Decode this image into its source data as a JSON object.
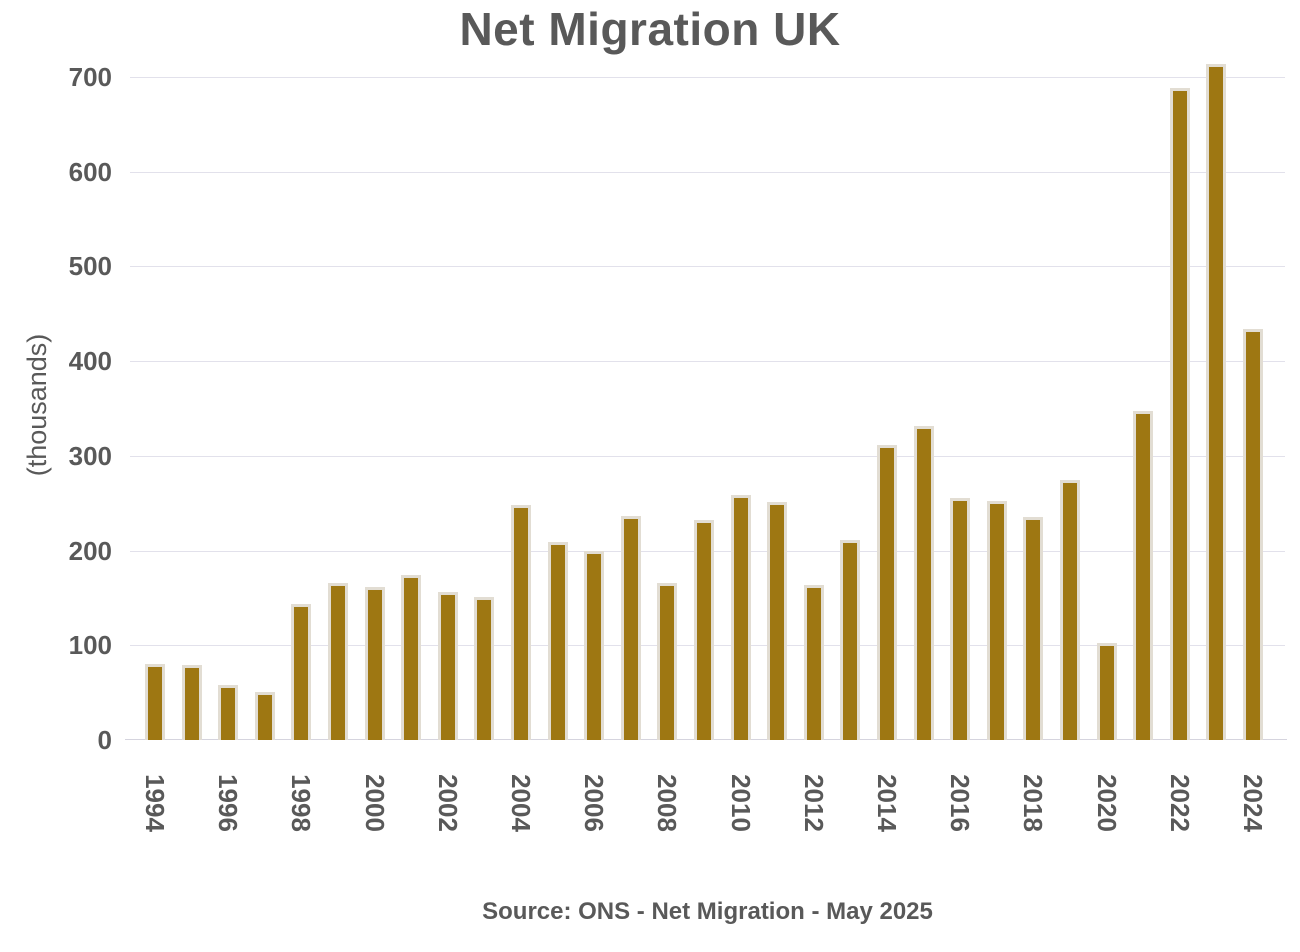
{
  "title": "Net Migration UK",
  "source": "Source: ONS - Net Migration - May 2025",
  "y_axis": {
    "label": "(thousands)",
    "ticks": [
      0,
      100,
      200,
      300,
      400,
      500,
      600,
      700
    ]
  },
  "x_axis": {
    "shown_years": [
      "1994",
      "1996",
      "1998",
      "2000",
      "2002",
      "2004",
      "2006",
      "2008",
      "2010",
      "2012",
      "2014",
      "2016",
      "2018",
      "2020",
      "2022",
      "2024"
    ]
  },
  "colors": {
    "bar_fill": "#9E7712",
    "bar_outline": "#E2DDD3",
    "text": "#595959",
    "gridline": "#E2E1EB",
    "axis_line": "#D5D4DE",
    "background": "#FFFFFF"
  },
  "chart_data": {
    "type": "bar",
    "title": "Net Migration UK",
    "xlabel": "",
    "ylabel": "(thousands)",
    "ylim": [
      0,
      700
    ],
    "grid": "horizontal",
    "legend": "none",
    "categories": [
      1994,
      1995,
      1996,
      1997,
      1998,
      1999,
      2000,
      2001,
      2002,
      2003,
      2004,
      2005,
      2006,
      2007,
      2008,
      2009,
      2010,
      2011,
      2012,
      2013,
      2014,
      2015,
      2016,
      2017,
      2018,
      2019,
      2020,
      2021,
      2022,
      2023,
      2024
    ],
    "values": [
      77,
      76,
      55,
      48,
      140,
      163,
      158,
      171,
      153,
      148,
      245,
      206,
      196,
      233,
      163,
      229,
      256,
      248,
      161,
      208,
      308,
      328,
      252,
      249,
      232,
      271,
      99,
      344,
      685,
      711,
      431
    ],
    "x_tick_interval": 2
  }
}
